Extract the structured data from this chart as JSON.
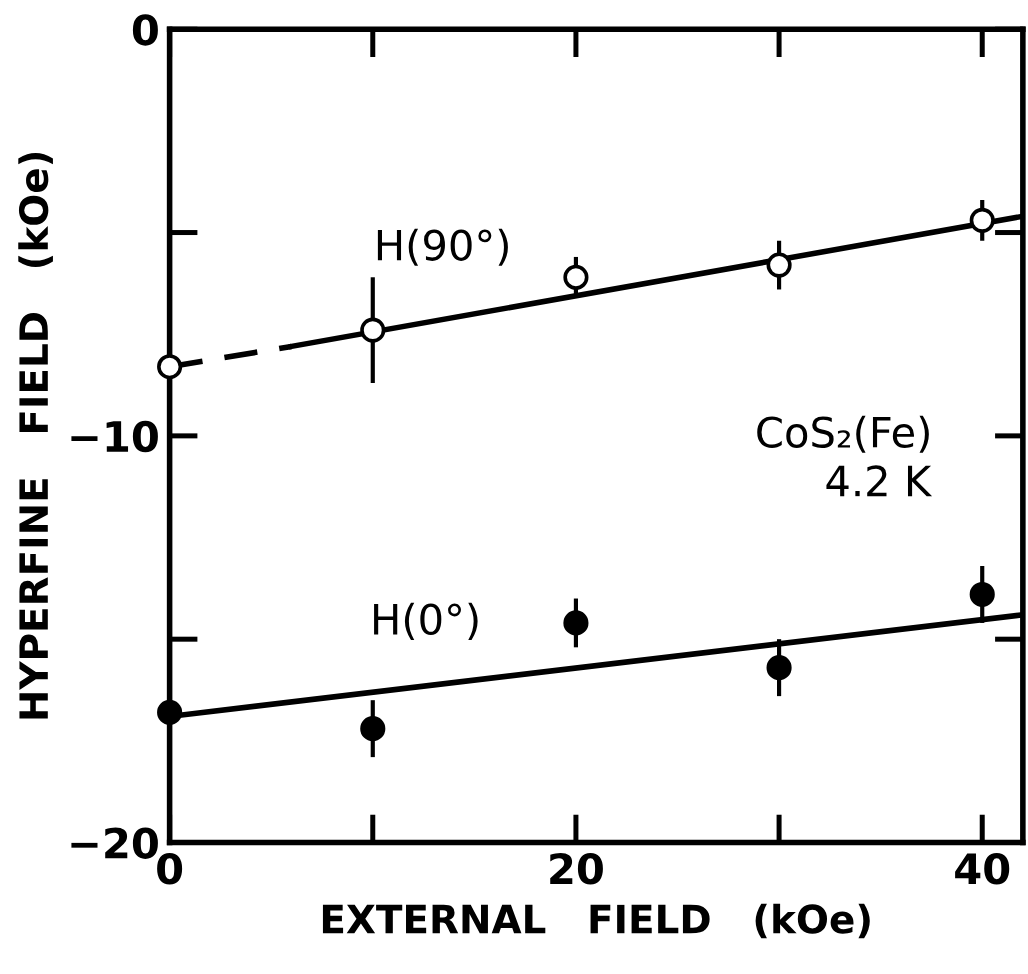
{
  "chart_data": {
    "type": "scatter",
    "xlabel": "EXTERNAL   FIELD   (kOe)",
    "ylabel": "HYPERFINE   FIELD   (kOe)",
    "xlim": [
      0,
      42
    ],
    "ylim": [
      -20,
      0
    ],
    "xticks": [
      0,
      {
        "value": 10,
        "label": null
      },
      20,
      {
        "value": 30,
        "label": null
      },
      40
    ],
    "yticks": [
      {
        "value": -20,
        "label": "−20"
      },
      {
        "value": -15,
        "label": null
      },
      {
        "value": -10,
        "label": "−10"
      },
      {
        "value": -5,
        "label": null
      },
      0
    ],
    "grid": false,
    "legend": false,
    "series": [
      {
        "marker": "circle",
        "color": "#000000",
        "x": [
          0,
          10,
          20,
          30,
          40
        ],
        "values": [
          -8.3,
          -7.4,
          -6.1,
          -5.8,
          -4.7
        ],
        "errors": [
          0.9,
          1.3,
          0.5,
          0.6,
          0.5
        ]
      },
      {
        "marker": "circle",
        "color": "#000000",
        "x": [
          0,
          10,
          20,
          30,
          40
        ],
        "values": [
          -16.8,
          -17.2,
          -14.6,
          -15.7,
          -13.9
        ],
        "errors": [
          null,
          0.7,
          0.6,
          0.7,
          0.7
        ]
      },
      {
        "type": "line",
        "color": "#000000",
        "line_style": "dashed",
        "x": [
          0,
          6
        ],
        "values": [
          -8.3,
          -7.8
        ]
      },
      {
        "type": "line",
        "color": "#000000",
        "line_style": "solid",
        "x": [
          6,
          42
        ],
        "values": [
          -7.8,
          -4.6
        ]
      },
      {
        "type": "line",
        "color": "#000000",
        "line_style": "solid",
        "x": [
          0,
          42
        ],
        "values": [
          -16.9,
          -14.4
        ]
      }
    ],
    "annotations": [
      "H(90°)",
      "H(0°)",
      "CoS₂(Fe)",
      "4.2 K"
    ]
  }
}
